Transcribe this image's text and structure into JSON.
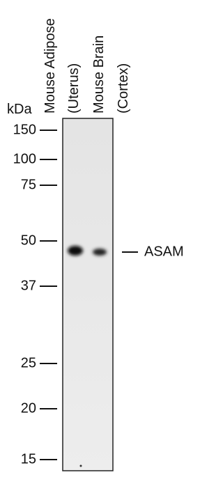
{
  "unit_label": "kDa",
  "lanes": [
    "Mouse Adipose",
    "(Uterus)",
    "Mouse Brain",
    "(Cortex)"
  ],
  "markers": [
    "150",
    "100",
    "75",
    "50",
    "37",
    "25",
    "20",
    "15"
  ],
  "band_label": "ASAM"
}
